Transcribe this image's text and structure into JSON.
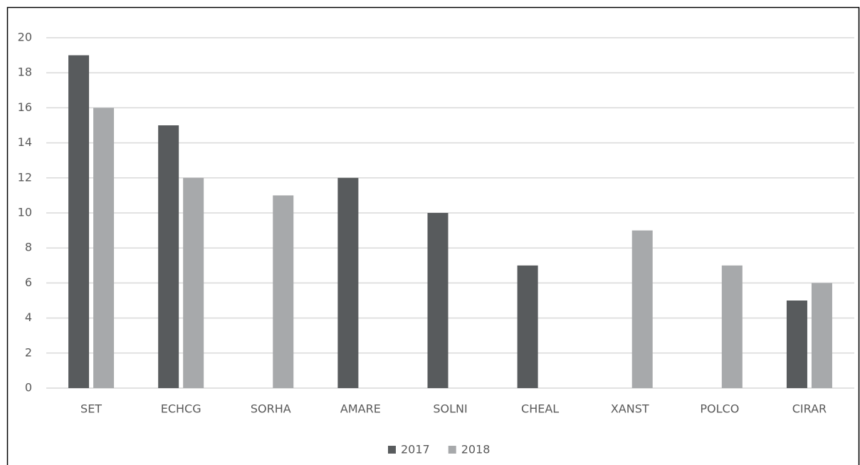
{
  "chart_data": {
    "type": "bar",
    "categories": [
      "SET",
      "ECHCG",
      "SORHA",
      "AMARE",
      "SOLNI",
      "CHEAL",
      "XANST",
      "POLCO",
      "CIRAR"
    ],
    "series": [
      {
        "name": "2017",
        "color": "#585b5d",
        "values": [
          19,
          15,
          0,
          12,
          10,
          7,
          0,
          0,
          5
        ]
      },
      {
        "name": "2018",
        "color": "#a7a9ab",
        "values": [
          16,
          12,
          11,
          0,
          0,
          0,
          9,
          7,
          6
        ]
      }
    ],
    "ylim": [
      0,
      20
    ],
    "yticks": [
      0,
      2,
      4,
      6,
      8,
      10,
      12,
      14,
      16,
      18,
      20
    ],
    "grid": true,
    "legend": "bottom"
  }
}
